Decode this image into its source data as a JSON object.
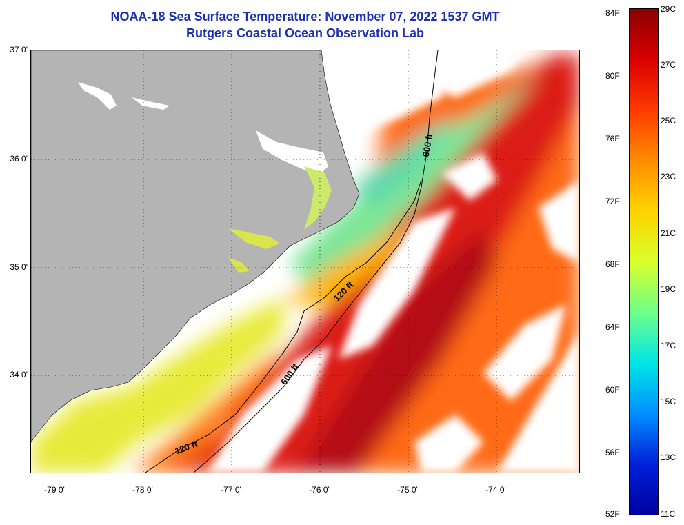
{
  "title": "NOAA-18 Sea Surface Temperature:  November 07, 2022 1537 GMT",
  "subtitle": "Rutgers Coastal Ocean Observation Lab",
  "lat_labels": [
    "37 0'",
    "36 0'",
    "35 0'",
    "34 0'"
  ],
  "lon_labels": [
    "-79 0'",
    "-78 0'",
    "-77 0'",
    "-76 0'",
    "-75 0'",
    "-74 0'"
  ],
  "contours": {
    "shelf_label_north": "120 ft",
    "shelf_label_south": "120 ft",
    "slope_label_north": "600 ft",
    "slope_label_south": "600 ft"
  },
  "colorbar": {
    "fahrenheit": [
      "84F",
      "80F",
      "76F",
      "72F",
      "68F",
      "64F",
      "60F",
      "56F",
      "52F"
    ],
    "celsius": [
      "29C",
      "27C",
      "25C",
      "23C",
      "21C",
      "19C",
      "17C",
      "15C",
      "13C",
      "11C"
    ],
    "colors": [
      "#8b0000",
      "#d80000",
      "#ff3a00",
      "#ff8c00",
      "#ffd300",
      "#d8ff2a",
      "#6fff8a",
      "#00e6e6",
      "#0090ff",
      "#0020d8",
      "#0000a0"
    ]
  },
  "colors": {
    "land": "#b4b4b4",
    "title": "#1d2fb4"
  }
}
